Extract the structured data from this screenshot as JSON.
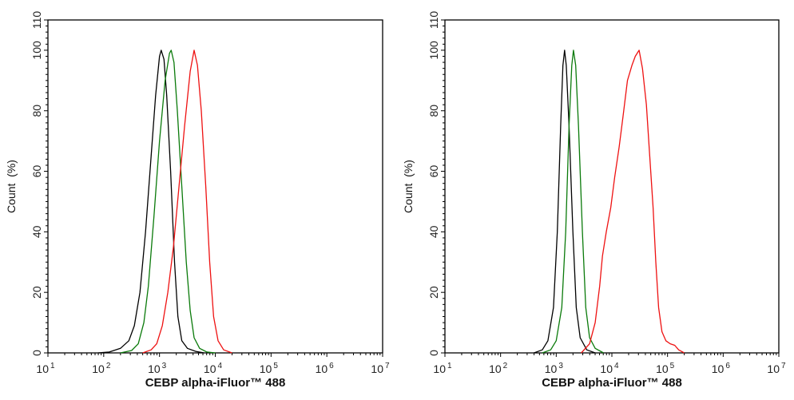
{
  "chart_data": [
    {
      "type": "line",
      "title": "",
      "xlabel": "CEBP alpha-iFluor™ 488",
      "ylabel": "Count  (%)",
      "xscale": "log",
      "xlim_log10": [
        1,
        7
      ],
      "ylim": [
        0,
        110
      ],
      "yticks": [
        0,
        20,
        40,
        60,
        80,
        100,
        110
      ],
      "xticks_exp": [
        1,
        2,
        3,
        4,
        5,
        6,
        7
      ],
      "xtick_base": "10",
      "grid": false,
      "series": [
        {
          "name": "black",
          "color": "#000000",
          "points_log10x_y": [
            [
              1.9,
              0
            ],
            [
              2.1,
              0.3
            ],
            [
              2.3,
              1.5
            ],
            [
              2.45,
              4
            ],
            [
              2.55,
              9
            ],
            [
              2.65,
              20
            ],
            [
              2.75,
              40
            ],
            [
              2.85,
              65
            ],
            [
              2.93,
              85
            ],
            [
              3.0,
              98
            ],
            [
              3.03,
              100
            ],
            [
              3.08,
              97
            ],
            [
              3.13,
              85
            ],
            [
              3.2,
              60
            ],
            [
              3.27,
              30
            ],
            [
              3.33,
              12
            ],
            [
              3.4,
              4
            ],
            [
              3.5,
              1.5
            ],
            [
              3.65,
              0.5
            ],
            [
              3.8,
              0
            ]
          ]
        },
        {
          "name": "green",
          "color": "#0a7a0a",
          "points_log10x_y": [
            [
              2.3,
              0
            ],
            [
              2.5,
              0.8
            ],
            [
              2.62,
              3
            ],
            [
              2.72,
              10
            ],
            [
              2.8,
              22
            ],
            [
              2.9,
              45
            ],
            [
              3.0,
              70
            ],
            [
              3.1,
              90
            ],
            [
              3.18,
              99
            ],
            [
              3.21,
              100
            ],
            [
              3.26,
              96
            ],
            [
              3.32,
              80
            ],
            [
              3.4,
              55
            ],
            [
              3.48,
              30
            ],
            [
              3.55,
              14
            ],
            [
              3.62,
              5
            ],
            [
              3.72,
              1.5
            ],
            [
              3.85,
              0.3
            ],
            [
              4.0,
              0
            ]
          ]
        },
        {
          "name": "red",
          "color": "#ee1111",
          "points_log10x_y": [
            [
              2.7,
              0
            ],
            [
              2.85,
              1
            ],
            [
              2.95,
              3
            ],
            [
              3.05,
              9
            ],
            [
              3.15,
              20
            ],
            [
              3.25,
              35
            ],
            [
              3.35,
              55
            ],
            [
              3.45,
              75
            ],
            [
              3.55,
              93
            ],
            [
              3.62,
              100
            ],
            [
              3.68,
              95
            ],
            [
              3.75,
              80
            ],
            [
              3.83,
              55
            ],
            [
              3.9,
              30
            ],
            [
              3.97,
              12
            ],
            [
              4.05,
              4
            ],
            [
              4.15,
              1
            ],
            [
              4.3,
              0
            ]
          ]
        }
      ]
    },
    {
      "type": "line",
      "title": "",
      "xlabel": "CEBP alpha-iFluor™ 488",
      "ylabel": "Count  (%)",
      "xscale": "log",
      "xlim_log10": [
        1,
        7
      ],
      "ylim": [
        0,
        110
      ],
      "yticks": [
        0,
        20,
        40,
        60,
        80,
        100,
        110
      ],
      "xticks_exp": [
        1,
        2,
        3,
        4,
        5,
        6,
        7
      ],
      "xtick_base": "10",
      "grid": false,
      "series": [
        {
          "name": "black",
          "color": "#000000",
          "points_log10x_y": [
            [
              2.6,
              0
            ],
            [
              2.75,
              1
            ],
            [
              2.85,
              4
            ],
            [
              2.95,
              15
            ],
            [
              3.02,
              40
            ],
            [
              3.08,
              75
            ],
            [
              3.12,
              95
            ],
            [
              3.15,
              100
            ],
            [
              3.18,
              95
            ],
            [
              3.23,
              75
            ],
            [
              3.3,
              40
            ],
            [
              3.36,
              15
            ],
            [
              3.43,
              5
            ],
            [
              3.55,
              1
            ],
            [
              3.7,
              0
            ]
          ]
        },
        {
          "name": "green",
          "color": "#0a7a0a",
          "points_log10x_y": [
            [
              2.75,
              0
            ],
            [
              2.9,
              1
            ],
            [
              3.0,
              4
            ],
            [
              3.1,
              15
            ],
            [
              3.17,
              40
            ],
            [
              3.23,
              75
            ],
            [
              3.28,
              95
            ],
            [
              3.31,
              100
            ],
            [
              3.35,
              95
            ],
            [
              3.4,
              75
            ],
            [
              3.47,
              40
            ],
            [
              3.53,
              15
            ],
            [
              3.6,
              5
            ],
            [
              3.7,
              1.5
            ],
            [
              3.85,
              0
            ]
          ]
        },
        {
          "name": "red",
          "color": "#ee1111",
          "points_log10x_y": [
            [
              3.45,
              0
            ],
            [
              3.6,
              3
            ],
            [
              3.7,
              10
            ],
            [
              3.78,
              22
            ],
            [
              3.83,
              32
            ],
            [
              3.9,
              40
            ],
            [
              3.98,
              48
            ],
            [
              4.05,
              58
            ],
            [
              4.13,
              68
            ],
            [
              4.2,
              78
            ],
            [
              4.28,
              90
            ],
            [
              4.36,
              95
            ],
            [
              4.42,
              98
            ],
            [
              4.49,
              100
            ],
            [
              4.55,
              94
            ],
            [
              4.62,
              82
            ],
            [
              4.68,
              65
            ],
            [
              4.74,
              48
            ],
            [
              4.79,
              30
            ],
            [
              4.84,
              15
            ],
            [
              4.9,
              7
            ],
            [
              4.97,
              4
            ],
            [
              5.05,
              3
            ],
            [
              5.13,
              2.5
            ],
            [
              5.2,
              1
            ],
            [
              5.3,
              0
            ]
          ]
        }
      ]
    }
  ]
}
